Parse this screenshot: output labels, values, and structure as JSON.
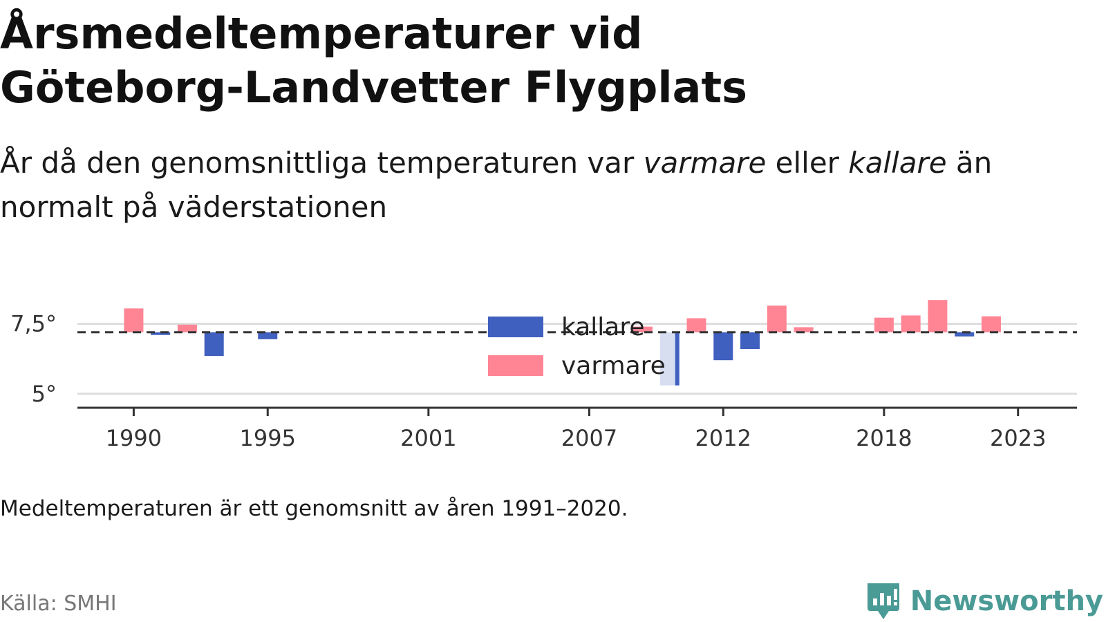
{
  "header": {
    "title_line1": "Årsmedeltemperaturer vid",
    "title_line2": "Göteborg-Landvetter Flygplats",
    "subtitle_part1": "År då den genomsnittliga temperaturen var ",
    "subtitle_em1": "varmare",
    "subtitle_part2": " eller ",
    "subtitle_em2": "kallare",
    "subtitle_part3": " än normalt på väderstationen"
  },
  "footer": {
    "note": "Medeltemperaturen är ett genomsnitt av åren 1991–2020.",
    "source": "Källa: SMHI",
    "brand": "Newsworthy"
  },
  "colors": {
    "warmer": "#ff8595",
    "colder": "#4060bf",
    "highlight_bg": "#d6def0",
    "axis": "#333333",
    "grid": "#dddddd"
  },
  "chart_data": {
    "type": "bar",
    "baseline": 7.2,
    "ylim": [
      4.5,
      8.7
    ],
    "ytick_labels": [
      {
        "value": 5,
        "label": "5°"
      },
      {
        "value": 7.5,
        "label": "7,5°"
      }
    ],
    "xtick_labels": [
      1990,
      1995,
      2001,
      2007,
      2012,
      2018,
      2023
    ],
    "xlim": [
      1987.9,
      2025.2
    ],
    "legend": {
      "position": "center",
      "items": [
        {
          "key": "colder",
          "label": "kallare"
        },
        {
          "key": "warmer",
          "label": "varmare"
        }
      ]
    },
    "highlight_year": 2010,
    "years": [
      1990,
      1991,
      1992,
      1993,
      1995,
      2009,
      2010,
      2011,
      2012,
      2013,
      2014,
      2015,
      2018,
      2019,
      2020,
      2021,
      2022
    ],
    "values": [
      8.05,
      7.1,
      7.47,
      6.35,
      6.95,
      7.4,
      5.3,
      7.7,
      6.2,
      6.6,
      8.15,
      7.38,
      7.72,
      7.8,
      8.35,
      7.05,
      7.77
    ]
  }
}
